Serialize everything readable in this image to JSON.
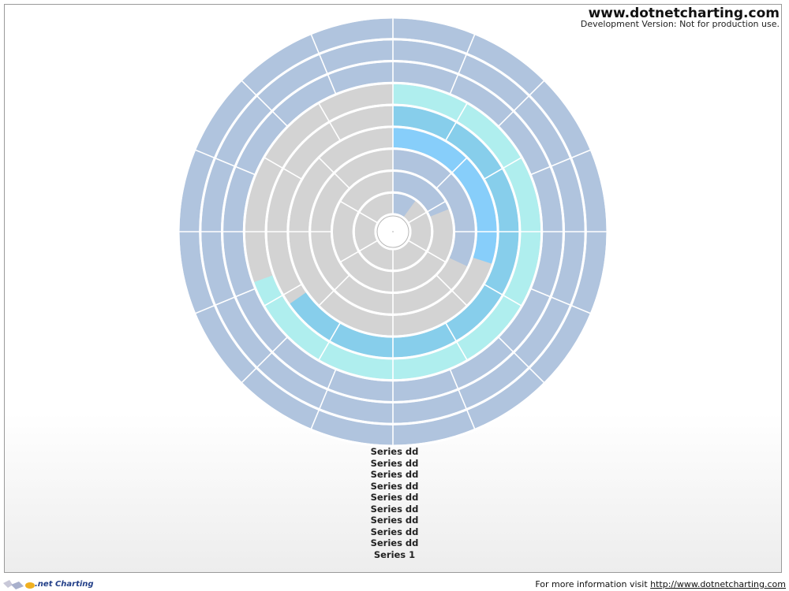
{
  "header": {
    "brand": "www.dotnetcharting.com",
    "subtitle": "Development Version: Not for production use."
  },
  "footer": {
    "logo_text": ".net Charting",
    "info_text": "For more information visit ",
    "link_text": "http://www.dotnetcharting.com"
  },
  "colors": {
    "background_band": "#b0c4de",
    "unfilled_band": "#d3d3d3",
    "band_separator": "#ffffff",
    "series_colors": [
      "#b0c4de",
      "#87cefa",
      "#87ceeb",
      "#afeeee"
    ]
  },
  "chart_data": {
    "type": "radial-bar",
    "rings_inner_to_outer": [
      {
        "name": "Series dd",
        "start_deg": 0,
        "end_deg": 36,
        "fill": "#b0c4de"
      },
      {
        "name": "Series dd",
        "start_deg": 0,
        "end_deg": 68,
        "fill": "#b0c4de"
      },
      {
        "name": "Series dd",
        "start_deg": 0,
        "end_deg": 115,
        "fill": "#b0c4de"
      },
      {
        "name": "Series dd",
        "start_deg": 0,
        "end_deg": 108,
        "fill": "#87cefa"
      },
      {
        "name": "Series dd",
        "start_deg": 0,
        "end_deg": 235,
        "fill": "#87ceeb"
      },
      {
        "name": "Series dd",
        "start_deg": 0,
        "end_deg": 250,
        "fill": "#afeeee"
      },
      {
        "name": "Series dd",
        "start_deg": 0,
        "end_deg": 360,
        "fill": "#b0c4de"
      },
      {
        "name": "Series dd",
        "start_deg": 0,
        "end_deg": 360,
        "fill": "#b0c4de"
      },
      {
        "name": "Series dd",
        "start_deg": 0,
        "end_deg": 360,
        "fill": "#b0c4de"
      }
    ],
    "scale_divisions_deg_per_ring": [
      60,
      60,
      45,
      45,
      30,
      30,
      22.5,
      22.5,
      22.5
    ],
    "legend_entries": [
      "Series dd",
      "Series dd",
      "Series dd",
      "Series dd",
      "Series dd",
      "Series dd",
      "Series dd",
      "Series dd",
      "Series dd",
      "Series 1"
    ],
    "legend_position": "bottom-center"
  }
}
